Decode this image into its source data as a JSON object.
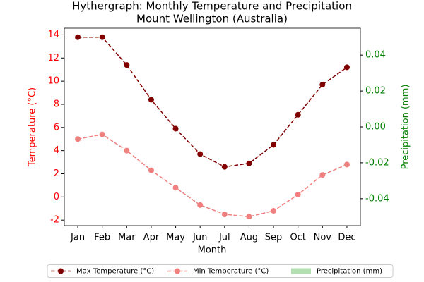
{
  "chart_data": {
    "type": "line",
    "title": "Hythergraph: Monthly Temperature and Precipitation",
    "subtitle": "Mount Wellington (Australia)",
    "xlabel": "Month",
    "ylabel": "Temperature (°C)",
    "y2label": "Precipitation (mm)",
    "categories": [
      "Jan",
      "Feb",
      "Mar",
      "Apr",
      "May",
      "Jun",
      "Jul",
      "Aug",
      "Sep",
      "Oct",
      "Nov",
      "Dec"
    ],
    "series": [
      {
        "name": "Max Temperature (°C)",
        "color": "#800000",
        "type": "line",
        "values": [
          13.8,
          13.8,
          11.4,
          8.4,
          5.9,
          3.7,
          2.6,
          2.9,
          4.5,
          7.1,
          9.7,
          11.2
        ]
      },
      {
        "name": "Min Temperature (°C)",
        "color": "#f08080",
        "type": "line",
        "values": [
          5.0,
          5.4,
          4.0,
          2.3,
          0.8,
          -0.7,
          -1.5,
          -1.7,
          -1.2,
          0.2,
          1.9,
          2.8
        ]
      },
      {
        "name": "Precipitation (mm)",
        "color": "#b3dfb3",
        "type": "bar",
        "axis": "y2",
        "values": [
          0,
          0,
          0,
          0,
          0,
          0,
          0,
          0,
          0,
          0,
          0,
          0
        ]
      }
    ],
    "ylim": [
      -2.475,
      14.575
    ],
    "yticks": [
      -2,
      0,
      2,
      4,
      6,
      8,
      10,
      12,
      14
    ],
    "y2lim": [
      -0.055,
      0.055
    ],
    "y2ticks": [
      -0.04,
      -0.02,
      {
        "value": 0,
        "label": "0.00"
      },
      0.02,
      0.04
    ],
    "ycolor": "#ff0000",
    "y2color": "#008000",
    "legend": "bottom"
  }
}
